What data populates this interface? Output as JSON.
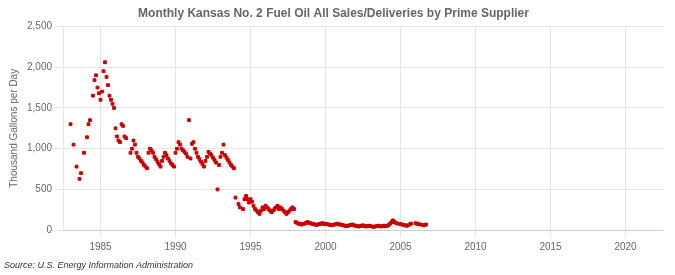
{
  "chart_data": {
    "type": "scatter",
    "title": "Monthly Kansas No. 2 Fuel Oil All Sales/Deliveries by Prime Supplier",
    "ylabel": "Thousand Gallons per Day",
    "annotation": "Source: U.S. Energy Information Administration",
    "color": "#cc0000",
    "marker": "square",
    "grid": true,
    "xlim": [
      1982.5,
      2022.5
    ],
    "xticks": [
      1985,
      1990,
      1995,
      2000,
      2005,
      2010,
      2015,
      2020
    ],
    "ylim": [
      0,
      2500
    ],
    "yticks": [
      0,
      500,
      {
        "value": 1000,
        "label": "1,000"
      },
      {
        "value": 1500,
        "label": "1,500"
      },
      {
        "value": 2000,
        "label": "2,000"
      },
      {
        "value": 2500,
        "label": "2,500"
      }
    ],
    "x": [
      1983.0,
      1983.2,
      1983.4,
      1983.6,
      1983.7,
      1983.9,
      1984.1,
      1984.2,
      1984.3,
      1984.5,
      1984.6,
      1984.7,
      1984.8,
      1984.9,
      1985.0,
      1985.1,
      1985.2,
      1985.3,
      1985.4,
      1985.5,
      1985.6,
      1985.7,
      1985.8,
      1985.9,
      1986.0,
      1986.1,
      1986.2,
      1986.3,
      1986.4,
      1986.5,
      1986.6,
      1986.7,
      1987.0,
      1987.1,
      1987.2,
      1987.3,
      1987.4,
      1987.5,
      1987.6,
      1987.7,
      1987.8,
      1987.9,
      1988.0,
      1988.1,
      1988.2,
      1988.3,
      1988.4,
      1988.5,
      1988.6,
      1988.7,
      1988.8,
      1988.9,
      1989.0,
      1989.1,
      1989.2,
      1989.3,
      1989.4,
      1989.5,
      1989.6,
      1989.7,
      1989.8,
      1989.9,
      1990.0,
      1990.1,
      1990.2,
      1990.3,
      1990.4,
      1990.5,
      1990.6,
      1990.7,
      1990.8,
      1990.9,
      1991.0,
      1991.1,
      1991.2,
      1991.3,
      1991.4,
      1991.5,
      1991.6,
      1991.7,
      1991.8,
      1991.9,
      1992.0,
      1992.1,
      1992.2,
      1992.3,
      1992.4,
      1992.5,
      1992.6,
      1992.7,
      1992.8,
      1992.9,
      1993.0,
      1993.1,
      1993.2,
      1993.3,
      1993.4,
      1993.5,
      1993.6,
      1993.7,
      1993.8,
      1993.9,
      1994.0,
      1994.2,
      1994.3,
      1994.5,
      1994.6,
      1994.7,
      1994.8,
      1994.9,
      1995.0,
      1995.1,
      1995.2,
      1995.3,
      1995.4,
      1995.5,
      1995.6,
      1995.7,
      1995.8,
      1995.9,
      1996.0,
      1996.1,
      1996.2,
      1996.3,
      1996.4,
      1996.5,
      1996.6,
      1996.7,
      1996.8,
      1996.9,
      1997.0,
      1997.1,
      1997.2,
      1997.3,
      1997.4,
      1997.5,
      1997.6,
      1997.7,
      1997.8,
      1997.9,
      1998.0,
      1998.1,
      1998.2,
      1998.3,
      1998.4,
      1998.5,
      1998.6,
      1998.7,
      1998.8,
      1998.9,
      1999.0,
      1999.1,
      1999.2,
      1999.3,
      1999.4,
      1999.5,
      1999.6,
      1999.7,
      1999.8,
      1999.9,
      2000.0,
      2000.1,
      2000.2,
      2000.3,
      2000.4,
      2000.5,
      2000.6,
      2000.7,
      2000.8,
      2000.9,
      2001.0,
      2001.1,
      2001.2,
      2001.3,
      2001.4,
      2001.5,
      2001.6,
      2001.7,
      2001.8,
      2001.9,
      2002.0,
      2002.1,
      2002.2,
      2002.3,
      2002.4,
      2002.5,
      2002.6,
      2002.7,
      2002.8,
      2002.9,
      2003.0,
      2003.1,
      2003.2,
      2003.3,
      2003.4,
      2003.5,
      2003.6,
      2003.7,
      2003.8,
      2003.9,
      2004.0,
      2004.1,
      2004.2,
      2004.3,
      2004.4,
      2004.5,
      2004.6,
      2004.7,
      2004.8,
      2005.0,
      2005.1,
      2005.2,
      2005.3,
      2005.4,
      2005.5,
      2005.6,
      2005.7,
      2006.0,
      2006.1,
      2006.2,
      2006.3,
      2006.5,
      2006.6,
      2006.7
    ],
    "values": [
      1300,
      1050,
      780,
      630,
      700,
      950,
      1140,
      1300,
      1350,
      1650,
      1840,
      1900,
      1750,
      1680,
      1600,
      1700,
      1950,
      2060,
      1880,
      1780,
      1650,
      1600,
      1550,
      1500,
      1250,
      1150,
      1100,
      1080,
      1300,
      1280,
      1150,
      1130,
      950,
      1000,
      1100,
      1050,
      950,
      900,
      880,
      850,
      830,
      800,
      780,
      760,
      950,
      1000,
      980,
      950,
      900,
      870,
      840,
      810,
      780,
      850,
      900,
      950,
      920,
      880,
      850,
      820,
      800,
      780,
      950,
      1000,
      1080,
      1050,
      1000,
      980,
      960,
      940,
      900,
      1350,
      880,
      1060,
      1080,
      1000,
      950,
      900,
      870,
      840,
      810,
      780,
      850,
      900,
      960,
      940,
      920,
      890,
      860,
      830,
      500,
      800,
      900,
      950,
      1050,
      920,
      890,
      860,
      830,
      800,
      780,
      760,
      400,
      320,
      280,
      260,
      380,
      420,
      380,
      340,
      380,
      350,
      300,
      260,
      240,
      220,
      200,
      240,
      280,
      260,
      300,
      280,
      260,
      240,
      220,
      240,
      260,
      280,
      300,
      260,
      280,
      260,
      240,
      220,
      200,
      220,
      240,
      260,
      280,
      260,
      100,
      90,
      80,
      75,
      70,
      75,
      80,
      90,
      100,
      90,
      85,
      80,
      75,
      70,
      65,
      70,
      75,
      80,
      85,
      75,
      80,
      75,
      70,
      65,
      60,
      65,
      70,
      75,
      80,
      70,
      70,
      65,
      60,
      55,
      50,
      55,
      60,
      65,
      70,
      60,
      55,
      50,
      45,
      50,
      55,
      60,
      50,
      45,
      50,
      55,
      50,
      45,
      40,
      45,
      50,
      55,
      50,
      45,
      50,
      55,
      50,
      55,
      60,
      80,
      100,
      120,
      100,
      90,
      80,
      75,
      70,
      65,
      60,
      55,
      60,
      70,
      80,
      85,
      80,
      75,
      70,
      65,
      60,
      70
    ]
  }
}
